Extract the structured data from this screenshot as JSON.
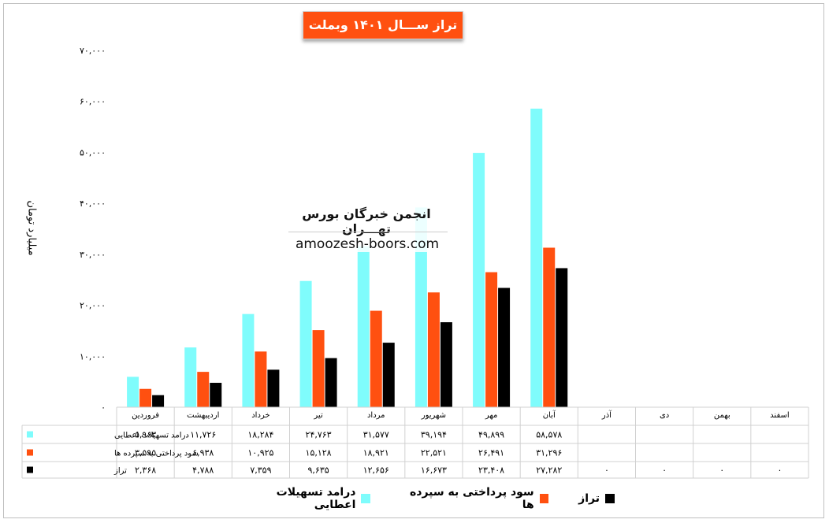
{
  "chart_data": {
    "type": "bar",
    "title": "تراز ســـال ۱۴۰۱ وبملت",
    "ylabel": "میلیارد تومان",
    "ylim": [
      0,
      70000
    ],
    "yticks": [
      "۰",
      "۱۰,۰۰۰",
      "۲۰,۰۰۰",
      "۳۰,۰۰۰",
      "۴۰,۰۰۰",
      "۵۰,۰۰۰",
      "۶۰,۰۰۰",
      "۷۰,۰۰۰"
    ],
    "grid": false,
    "legend_position": "bottom",
    "categories": [
      "فروردین",
      "اردیبهشت",
      "خرداد",
      "تیر",
      "مرداد",
      "شهریور",
      "مهر",
      "آبان",
      "آذر",
      "دی",
      "بهمن",
      "اسفند"
    ],
    "series": [
      {
        "name": "درامد تسهیلات اعطایی",
        "color": "#7ffcfc",
        "values": [
          5963,
          11726,
          18284,
          24763,
          31577,
          39194,
          49899,
          58578,
          null,
          null,
          null,
          null
        ],
        "labels": [
          "۵,۹۶۳",
          "۱۱,۷۲۶",
          "۱۸,۲۸۴",
          "۲۴,۷۶۳",
          "۳۱,۵۷۷",
          "۳۹,۱۹۴",
          "۴۹,۸۹۹",
          "۵۸,۵۷۸",
          "",
          "",
          "",
          ""
        ]
      },
      {
        "name": "سود پرداختی به سپرده ها",
        "color": "#ff5010",
        "values": [
          3595,
          6938,
          10925,
          15128,
          18921,
          22521,
          26491,
          31296,
          null,
          null,
          null,
          null
        ],
        "labels": [
          "۳,۵۹۵",
          "۶,۹۳۸",
          "۱۰,۹۲۵",
          "۱۵,۱۲۸",
          "۱۸,۹۲۱",
          "۲۲,۵۲۱",
          "۲۶,۴۹۱",
          "۳۱,۲۹۶",
          "",
          "",
          "",
          ""
        ]
      },
      {
        "name": "تراز",
        "color": "#000000",
        "values": [
          2368,
          4788,
          7359,
          9635,
          12656,
          16673,
          23408,
          27282,
          0,
          0,
          0,
          0
        ],
        "labels": [
          "۲,۳۶۸",
          "۴,۷۸۸",
          "۷,۳۵۹",
          "۹,۶۳۵",
          "۱۲,۶۵۶",
          "۱۶,۶۷۳",
          "۲۳,۴۰۸",
          "۲۷,۲۸۲",
          "۰",
          "۰",
          "۰",
          "۰"
        ]
      }
    ]
  },
  "watermark": {
    "title": "انجمن خبرگان بورس تهـــران",
    "url": "amoozesh-boors.com"
  }
}
